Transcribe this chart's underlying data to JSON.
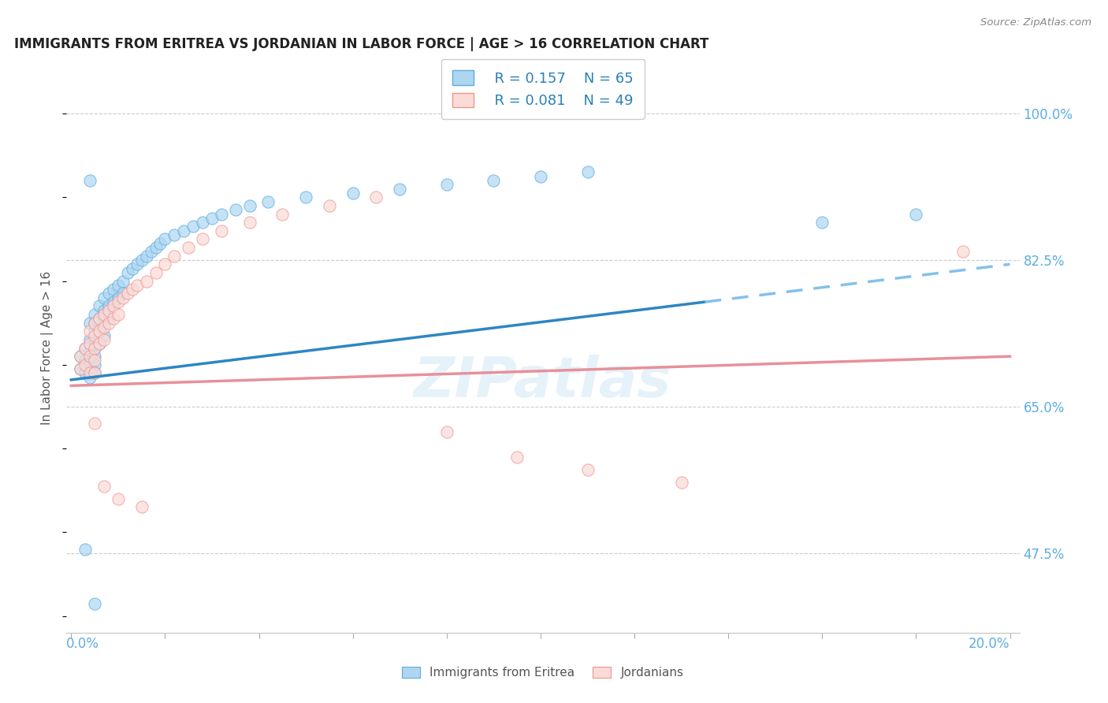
{
  "title": "IMMIGRANTS FROM ERITREA VS JORDANIAN IN LABOR FORCE | AGE > 16 CORRELATION CHART",
  "source": "Source: ZipAtlas.com",
  "ylabel_label": "In Labor Force | Age > 16",
  "ytick_labels": [
    "47.5%",
    "65.0%",
    "82.5%",
    "100.0%"
  ],
  "ytick_values": [
    0.475,
    0.65,
    0.825,
    1.0
  ],
  "xlim": [
    0.0,
    0.2
  ],
  "ylim": [
    0.38,
    1.05
  ],
  "legend_R1": "R = 0.157",
  "legend_N1": "N = 65",
  "legend_R2": "R = 0.081",
  "legend_N2": "N = 49",
  "color_blue_fill": "#AED6F1",
  "color_blue_edge": "#5DADE2",
  "color_pink_fill": "#FADBD8",
  "color_pink_edge": "#F1948A",
  "color_trend_blue": "#2E86C1",
  "color_trend_blue_dashed": "#85C1E9",
  "color_trend_pink": "#E8909A",
  "watermark_color": "#D6EAF8",
  "blue_x": [
    0.002,
    0.002,
    0.003,
    0.003,
    0.003,
    0.004,
    0.004,
    0.004,
    0.004,
    0.004,
    0.005,
    0.005,
    0.005,
    0.005,
    0.005,
    0.005,
    0.005,
    0.005,
    0.006,
    0.006,
    0.006,
    0.006,
    0.007,
    0.007,
    0.007,
    0.007,
    0.008,
    0.008,
    0.008,
    0.009,
    0.009,
    0.01,
    0.01,
    0.011,
    0.011,
    0.012,
    0.013,
    0.014,
    0.015,
    0.016,
    0.017,
    0.018,
    0.019,
    0.02,
    0.022,
    0.024,
    0.026,
    0.028,
    0.03,
    0.032,
    0.035,
    0.038,
    0.042,
    0.05,
    0.06,
    0.07,
    0.08,
    0.09,
    0.1,
    0.11,
    0.003,
    0.005,
    0.16,
    0.18,
    0.004
  ],
  "blue_y": [
    0.71,
    0.695,
    0.72,
    0.705,
    0.69,
    0.75,
    0.73,
    0.715,
    0.7,
    0.685,
    0.76,
    0.75,
    0.74,
    0.73,
    0.72,
    0.71,
    0.7,
    0.69,
    0.77,
    0.755,
    0.74,
    0.725,
    0.78,
    0.765,
    0.75,
    0.735,
    0.785,
    0.77,
    0.755,
    0.79,
    0.775,
    0.795,
    0.78,
    0.8,
    0.785,
    0.81,
    0.815,
    0.82,
    0.825,
    0.83,
    0.835,
    0.84,
    0.845,
    0.85,
    0.855,
    0.86,
    0.865,
    0.87,
    0.875,
    0.88,
    0.885,
    0.89,
    0.895,
    0.9,
    0.905,
    0.91,
    0.915,
    0.92,
    0.925,
    0.93,
    0.48,
    0.415,
    0.87,
    0.88,
    0.92
  ],
  "pink_x": [
    0.002,
    0.002,
    0.003,
    0.003,
    0.004,
    0.004,
    0.004,
    0.004,
    0.005,
    0.005,
    0.005,
    0.005,
    0.005,
    0.006,
    0.006,
    0.006,
    0.007,
    0.007,
    0.007,
    0.008,
    0.008,
    0.009,
    0.009,
    0.01,
    0.01,
    0.011,
    0.012,
    0.013,
    0.014,
    0.016,
    0.018,
    0.02,
    0.022,
    0.025,
    0.028,
    0.032,
    0.038,
    0.045,
    0.055,
    0.065,
    0.08,
    0.095,
    0.11,
    0.13,
    0.19,
    0.005,
    0.007,
    0.01,
    0.015
  ],
  "pink_y": [
    0.71,
    0.695,
    0.72,
    0.7,
    0.74,
    0.725,
    0.71,
    0.69,
    0.75,
    0.735,
    0.72,
    0.705,
    0.69,
    0.755,
    0.74,
    0.725,
    0.76,
    0.745,
    0.73,
    0.765,
    0.75,
    0.77,
    0.755,
    0.775,
    0.76,
    0.78,
    0.785,
    0.79,
    0.795,
    0.8,
    0.81,
    0.82,
    0.83,
    0.84,
    0.85,
    0.86,
    0.87,
    0.88,
    0.89,
    0.9,
    0.62,
    0.59,
    0.575,
    0.56,
    0.835,
    0.63,
    0.555,
    0.54,
    0.53
  ],
  "blue_trend_x": [
    0.0,
    0.135,
    0.2
  ],
  "blue_trend_y": [
    0.682,
    0.775,
    0.82
  ],
  "pink_trend_x": [
    0.0,
    0.2
  ],
  "pink_trend_y": [
    0.675,
    0.71
  ]
}
